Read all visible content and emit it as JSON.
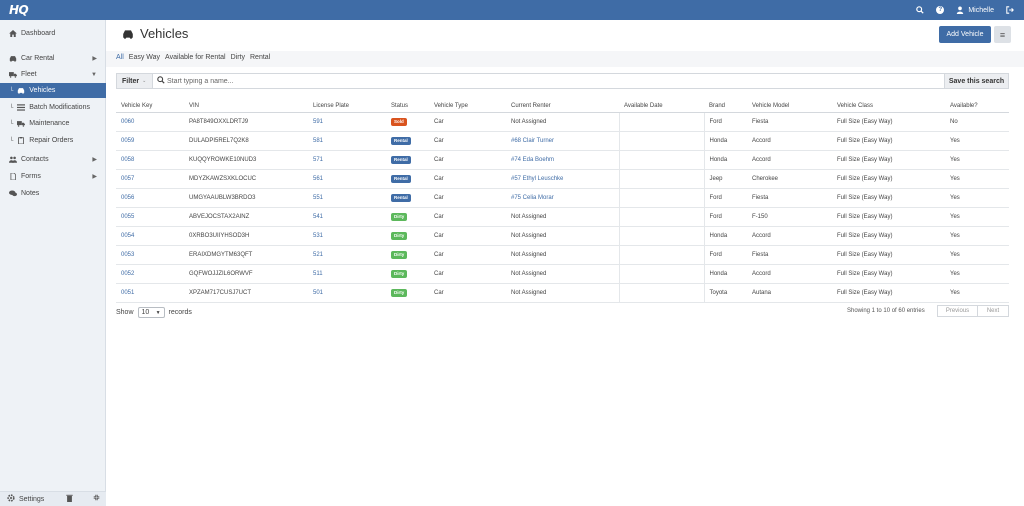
{
  "header": {
    "logo": "HQ",
    "user_name": "Michelle",
    "accent": "#3f6ca6"
  },
  "sidebar": {
    "items": [
      {
        "label": "Dashboard",
        "icon": "home-icon"
      },
      {
        "label": "Car Rental",
        "icon": "car-icon"
      },
      {
        "label": "Fleet",
        "icon": "truck-icon"
      },
      {
        "label": "Vehicles",
        "icon": "car-icon"
      },
      {
        "label": "Batch Modifications",
        "icon": "list-icon"
      },
      {
        "label": "Maintenance",
        "icon": "truck-icon"
      },
      {
        "label": "Repair Orders",
        "icon": "clipboard-icon"
      },
      {
        "label": "Contacts",
        "icon": "users-icon"
      },
      {
        "label": "Forms",
        "icon": "file-icon"
      },
      {
        "label": "Notes",
        "icon": "chat-icon"
      }
    ],
    "footer_settings": "Settings"
  },
  "page": {
    "title": "Vehicles",
    "add_button": "Add Vehicle",
    "tabs": [
      "All",
      "Easy Way",
      "Available for Rental",
      "Dirty",
      "Rental"
    ],
    "filter_label": "Filter",
    "search_placeholder": "Start typing a name...",
    "save_search": "Save this search"
  },
  "table": {
    "columns": [
      "Vehicle Key",
      "VIN",
      "License Plate",
      "Status",
      "Vehicle Type",
      "Current Renter",
      "Available Date",
      "Brand",
      "Vehicle Model",
      "Vehicle Class",
      "Available?"
    ],
    "status_colors": {
      "Sold": "#d9531e",
      "Rental": "#3f6ca6",
      "Dirty": "#5cb85c"
    },
    "rows": [
      {
        "key": "0060",
        "vin": "PA8T849OXXLDRTJ9",
        "plate": "591",
        "status": "Sold",
        "type": "Car",
        "renter": "Not Assigned",
        "renter_link": false,
        "available_date": "",
        "brand": "Ford",
        "model": "Fiesta",
        "class": "Full Size (Easy Way)",
        "available": "No"
      },
      {
        "key": "0059",
        "vin": "DULADPI5REL7Q2K8",
        "plate": "581",
        "status": "Rental",
        "type": "Car",
        "renter": "#68 Clair Turner",
        "renter_link": true,
        "available_date": "",
        "brand": "Honda",
        "model": "Accord",
        "class": "Full Size (Easy Way)",
        "available": "Yes"
      },
      {
        "key": "0058",
        "vin": "KUQQYROWKE10NUD3",
        "plate": "571",
        "status": "Rental",
        "type": "Car",
        "renter": "#74 Eda Boehm",
        "renter_link": true,
        "available_date": "",
        "brand": "Honda",
        "model": "Accord",
        "class": "Full Size (Easy Way)",
        "available": "Yes"
      },
      {
        "key": "0057",
        "vin": "MDYZKAWZSXKLOCUC",
        "plate": "561",
        "status": "Rental",
        "type": "Car",
        "renter": "#57 Ethyl Leuschke",
        "renter_link": true,
        "available_date": "",
        "brand": "Jeep",
        "model": "Cherokee",
        "class": "Full Size (Easy Way)",
        "available": "Yes"
      },
      {
        "key": "0056",
        "vin": "UMGYAAUBLW3BRDO3",
        "plate": "551",
        "status": "Rental",
        "type": "Car",
        "renter": "#75 Celia Morar",
        "renter_link": true,
        "available_date": "",
        "brand": "Ford",
        "model": "Fiesta",
        "class": "Full Size (Easy Way)",
        "available": "Yes"
      },
      {
        "key": "0055",
        "vin": "ABVEJOCSTAX2AINZ",
        "plate": "541",
        "status": "Dirty",
        "type": "Car",
        "renter": "Not Assigned",
        "renter_link": false,
        "available_date": "",
        "brand": "Ford",
        "model": "F-150",
        "class": "Full Size (Easy Way)",
        "available": "Yes"
      },
      {
        "key": "0054",
        "vin": "0XRBO3UIIYHSOD3H",
        "plate": "531",
        "status": "Dirty",
        "type": "Car",
        "renter": "Not Assigned",
        "renter_link": false,
        "available_date": "",
        "brand": "Honda",
        "model": "Accord",
        "class": "Full Size (Easy Way)",
        "available": "Yes"
      },
      {
        "key": "0053",
        "vin": "ERAIXDMGYTM63QFT",
        "plate": "521",
        "status": "Dirty",
        "type": "Car",
        "renter": "Not Assigned",
        "renter_link": false,
        "available_date": "",
        "brand": "Ford",
        "model": "Fiesta",
        "class": "Full Size (Easy Way)",
        "available": "Yes"
      },
      {
        "key": "0052",
        "vin": "GQFWOJJZIL6ORWVF",
        "plate": "511",
        "status": "Dirty",
        "type": "Car",
        "renter": "Not Assigned",
        "renter_link": false,
        "available_date": "",
        "brand": "Honda",
        "model": "Accord",
        "class": "Full Size (Easy Way)",
        "available": "Yes"
      },
      {
        "key": "0051",
        "vin": "XPZAM717CUSJ7UCT",
        "plate": "501",
        "status": "Dirty",
        "type": "Car",
        "renter": "Not Assigned",
        "renter_link": false,
        "available_date": "",
        "brand": "Toyota",
        "model": "Autana",
        "class": "Full Size (Easy Way)",
        "available": "Yes"
      }
    ]
  },
  "footer": {
    "show_label": "Show",
    "page_size": "10",
    "records_label": "records",
    "info": "Showing 1 to 10 of 60 entries",
    "prev": "Previous",
    "next": "Next"
  }
}
